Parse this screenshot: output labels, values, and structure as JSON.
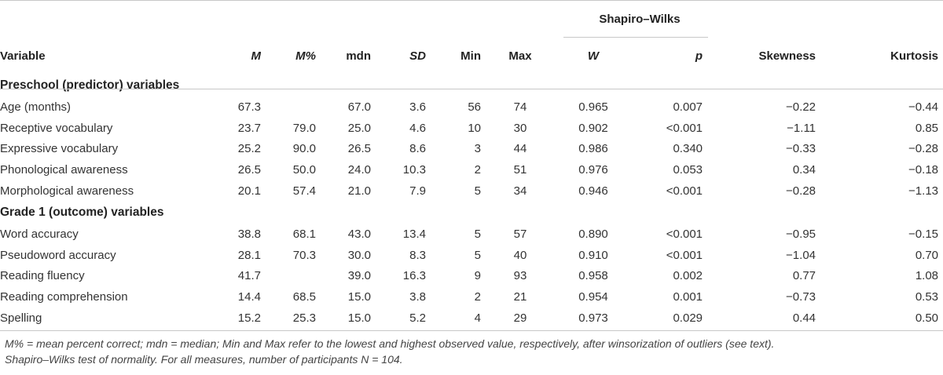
{
  "table": {
    "group_header": "Shapiro–Wilks",
    "headers": {
      "variable": "Variable",
      "m": "M",
      "mpct": "M%",
      "mdn": "mdn",
      "sd": "SD",
      "min": "Min",
      "max": "Max",
      "w": "W",
      "p": "p",
      "skew": "Skewness",
      "kurt": "Kurtosis"
    },
    "sections": [
      {
        "title": "Preschool (predictor) variables",
        "rows": [
          [
            "Age (months)",
            "67.3",
            "",
            "67.0",
            "3.6",
            "56",
            "74",
            "0.965",
            "0.007",
            "−0.22",
            "−0.44"
          ],
          [
            "Receptive vocabulary",
            "23.7",
            "79.0",
            "25.0",
            "4.6",
            "10",
            "30",
            "0.902",
            "<0.001",
            "−1.11",
            "0.85"
          ],
          [
            "Expressive vocabulary",
            "25.2",
            "90.0",
            "26.5",
            "8.6",
            "3",
            "44",
            "0.986",
            "0.340",
            "−0.33",
            "−0.28"
          ],
          [
            "Phonological awareness",
            "26.5",
            "50.0",
            "24.0",
            "10.3",
            "2",
            "51",
            "0.976",
            "0.053",
            "0.34",
            "−0.18"
          ],
          [
            "Morphological awareness",
            "20.1",
            "57.4",
            "21.0",
            "7.9",
            "5",
            "34",
            "0.946",
            "<0.001",
            "−0.28",
            "−1.13"
          ]
        ]
      },
      {
        "title": "Grade 1 (outcome) variables",
        "rows": [
          [
            "Word accuracy",
            "38.8",
            "68.1",
            "43.0",
            "13.4",
            "5",
            "57",
            "0.890",
            "<0.001",
            "−0.95",
            "−0.15"
          ],
          [
            "Pseudoword accuracy",
            "28.1",
            "70.3",
            "30.0",
            "8.3",
            "5",
            "40",
            "0.910",
            "<0.001",
            "−1.04",
            "0.70"
          ],
          [
            "Reading fluency",
            "41.7",
            "",
            "39.0",
            "16.3",
            "9",
            "93",
            "0.958",
            "0.002",
            "0.77",
            "1.08"
          ],
          [
            "Reading comprehension",
            "14.4",
            "68.5",
            "15.0",
            "3.8",
            "2",
            "21",
            "0.954",
            "0.001",
            "−0.73",
            "0.53"
          ],
          [
            "Spelling",
            "15.2",
            "25.3",
            "15.0",
            "5.2",
            "4",
            "29",
            "0.973",
            "0.029",
            "0.44",
            "0.50"
          ]
        ]
      }
    ]
  },
  "footnote": {
    "line1": "M% = mean percent correct; mdn = median; Min and Max refer to the lowest and highest observed value, respectively, after winsorization of outliers (see text).",
    "line2": "Shapiro–Wilks test of normality. For all measures, number of participants N = 104."
  }
}
